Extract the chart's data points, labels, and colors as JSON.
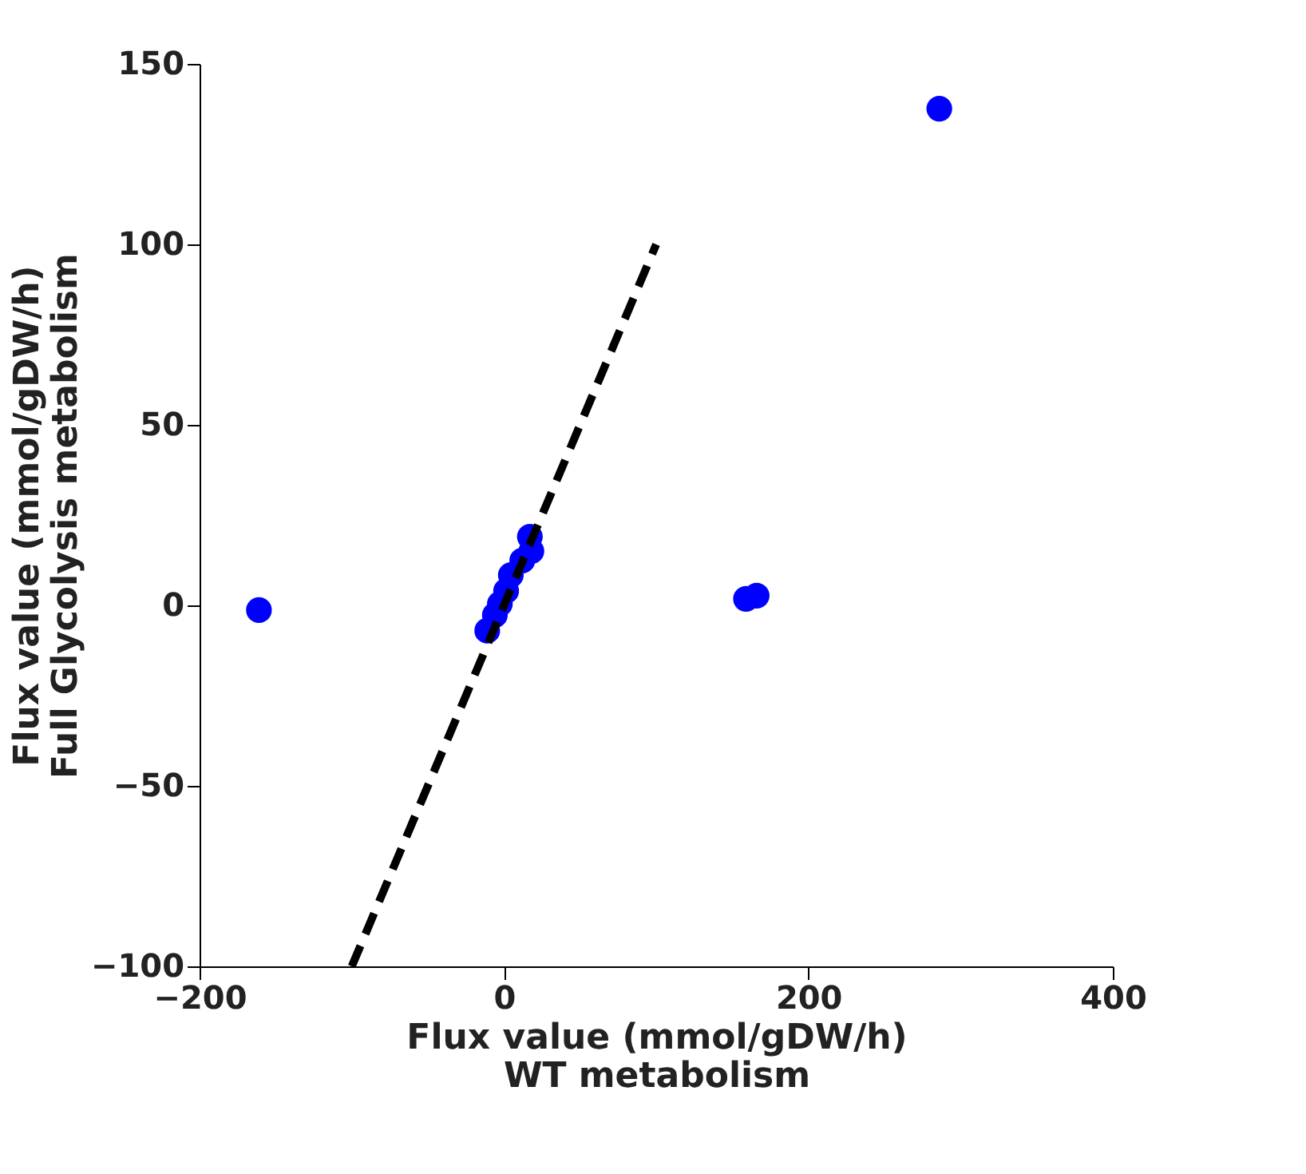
{
  "chart_data": {
    "type": "scatter",
    "xlabel": "Flux value (mmol/gDW/h)\nWT metabolism",
    "ylabel": "Flux value (mmol/gDW/h)\nFull Glycolysis metabolism",
    "xlim": [
      -200,
      400
    ],
    "ylim": [
      -100,
      150
    ],
    "xticks": [
      -200,
      0,
      200,
      400
    ],
    "yticks": [
      -100,
      -50,
      0,
      50,
      100,
      150
    ],
    "grid": false,
    "series": [
      {
        "marker": "circle",
        "color": "#0000ff",
        "x": [
          -161,
          286,
          159,
          166,
          17,
          18,
          12,
          4.5,
          1.4,
          -2.7,
          -6,
          -11
        ],
        "values": [
          -1.3,
          137.6,
          1.8,
          2.7,
          19,
          15,
          12.4,
          8.4,
          4,
          0.4,
          -2.7,
          -7
        ]
      },
      {
        "type": "line",
        "marker": "none",
        "color": "#000000",
        "line_style": "dashed",
        "x": [
          -100,
          100
        ],
        "values": [
          -100,
          100
        ]
      }
    ]
  }
}
